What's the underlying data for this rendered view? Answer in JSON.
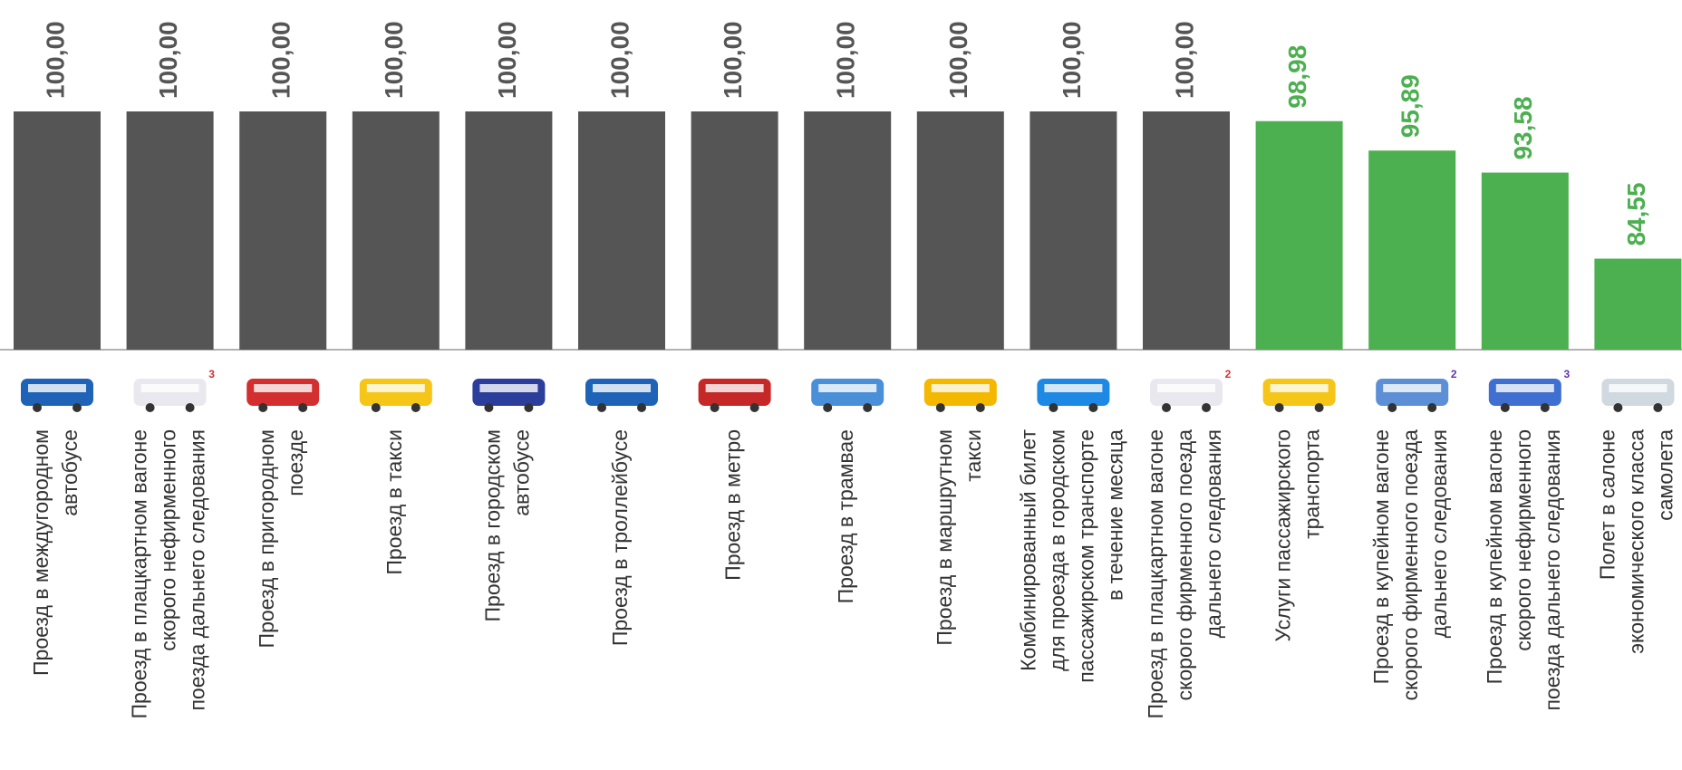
{
  "chart_data": {
    "type": "bar",
    "categories": [
      "Проезд в междугородном\nавтобусе",
      "Проезд в плацкартном вагоне\nскорого нефирменного\nпоезда дальнего следования",
      "Проезд в пригородном\nпоезде",
      "Проезд в такси",
      "Проезд в городском\nавтобусе",
      "Проезд в троллейбусе",
      "Проезд в метро",
      "Проезд в трамвае",
      "Проезд в маршрутном\nтакси",
      "Комбинированный билет\nдля проезда в городском\nпассажирском транспорте\nв течение месяца",
      "Проезд в плацкартном вагоне\nскорого фирменного поезда\nдальнего следования",
      "Услуги пассажирского\nтранспорта",
      "Проезд в купейном вагоне\nскорого фирменного поезда\nдальнего следования",
      "Проезд в купейном вагоне\nскорого нефирменного\nпоезда дальнего следования",
      "Полет в салоне\nэкономического класса\nсамолета"
    ],
    "values": [
      100,
      100,
      100,
      100,
      100,
      100,
      100,
      100,
      100,
      100,
      100,
      98.98,
      95.89,
      93.58,
      84.55
    ],
    "value_labels": [
      "100,00",
      "100,00",
      "100,00",
      "100,00",
      "100,00",
      "100,00",
      "100,00",
      "100,00",
      "100,00",
      "100,00",
      "100,00",
      "98,98",
      "95,89",
      "93,58",
      "84,55"
    ],
    "colors": [
      "#555555",
      "#555555",
      "#555555",
      "#555555",
      "#555555",
      "#555555",
      "#555555",
      "#555555",
      "#555555",
      "#555555",
      "#555555",
      "#4caf50",
      "#4caf50",
      "#4caf50",
      "#4caf50"
    ],
    "icon_badges": [
      null,
      "3",
      null,
      null,
      null,
      null,
      null,
      null,
      null,
      null,
      "2",
      null,
      "2",
      "3",
      null
    ],
    "ylim": [
      75,
      100
    ]
  }
}
